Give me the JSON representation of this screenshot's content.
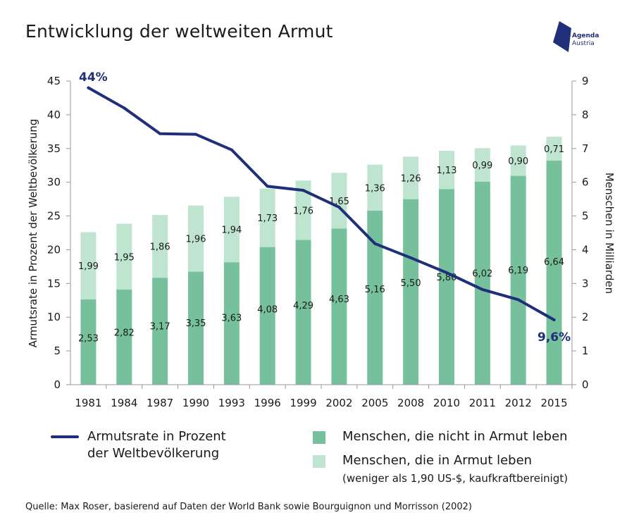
{
  "title": "Entwicklung der weltweiten Armut",
  "logo": {
    "line1": "Agenda",
    "line2": "Austria",
    "icon": "agenda-austria-logo-icon",
    "color": "#1f2f7a"
  },
  "source": "Quelle: Max Roser, basierend auf Daten der World Bank sowie Bourguignon und Morrisson (2002)",
  "legend": {
    "line": "Armutsrate in Prozent\nder Weltbevölkerung",
    "line_1": "Armutsrate in Prozent",
    "line_2": "der Weltbevölkerung",
    "not_poor": "Menschen, die nicht in Armut leben",
    "poor": "Menschen, die in Armut leben",
    "poor_note": "(weniger als 1,90 US-$, kaufkraftbereinigt)"
  },
  "chart_data": {
    "type": "bar",
    "categories": [
      "1981",
      "1984",
      "1987",
      "1990",
      "1993",
      "1996",
      "1999",
      "2002",
      "2005",
      "2008",
      "2010",
      "2011",
      "2012",
      "2015"
    ],
    "series": [
      {
        "name": "Menschen, die nicht in Armut leben",
        "kind": "stacked-bar",
        "axis": "right",
        "values": [
          2.53,
          2.82,
          3.17,
          3.35,
          3.63,
          4.08,
          4.29,
          4.63,
          5.16,
          5.5,
          5.8,
          6.02,
          6.19,
          6.64
        ],
        "labels": [
          "2,53",
          "2,82",
          "3,17",
          "3,35",
          "3,63",
          "4,08",
          "4,29",
          "4,63",
          "5,16",
          "5,50",
          "5,80",
          "6,02",
          "6,19",
          "6,64"
        ],
        "color": "#76c19b"
      },
      {
        "name": "Menschen, die in Armut leben",
        "kind": "stacked-bar",
        "axis": "right",
        "values": [
          1.99,
          1.95,
          1.86,
          1.96,
          1.94,
          1.73,
          1.76,
          1.65,
          1.36,
          1.26,
          1.13,
          0.99,
          0.9,
          0.71
        ],
        "labels": [
          "1,99",
          "1,95",
          "1,86",
          "1,96",
          "1,94",
          "1,73",
          "1,76",
          "1,65",
          "1,36",
          "1,26",
          "1,13",
          "0,99",
          "0,90",
          "0,71"
        ],
        "color": "#bfe4d0"
      },
      {
        "name": "Armutsrate in Prozent der Weltbevölkerung",
        "kind": "line",
        "axis": "left",
        "values": [
          44.0,
          41.0,
          37.2,
          37.1,
          34.8,
          29.4,
          28.8,
          26.3,
          20.9,
          18.8,
          16.6,
          14.1,
          12.6,
          9.6
        ],
        "color": "#1f2f7a"
      }
    ],
    "annotations": {
      "first": "44%",
      "last": "9,6%"
    },
    "left_axis": {
      "label": "Armutsrate in Prozent der Weltbevölkerung",
      "range": [
        0,
        45
      ],
      "ticks": [
        "0",
        "5",
        "10",
        "15",
        "20",
        "25",
        "30",
        "35",
        "40",
        "45"
      ]
    },
    "right_axis": {
      "label": "Menschen in Milliarden",
      "range": [
        0,
        9
      ],
      "ticks": [
        "0",
        "1",
        "2",
        "3",
        "4",
        "5",
        "6",
        "7",
        "8",
        "9"
      ]
    },
    "grid": false,
    "legend_position": "bottom"
  }
}
